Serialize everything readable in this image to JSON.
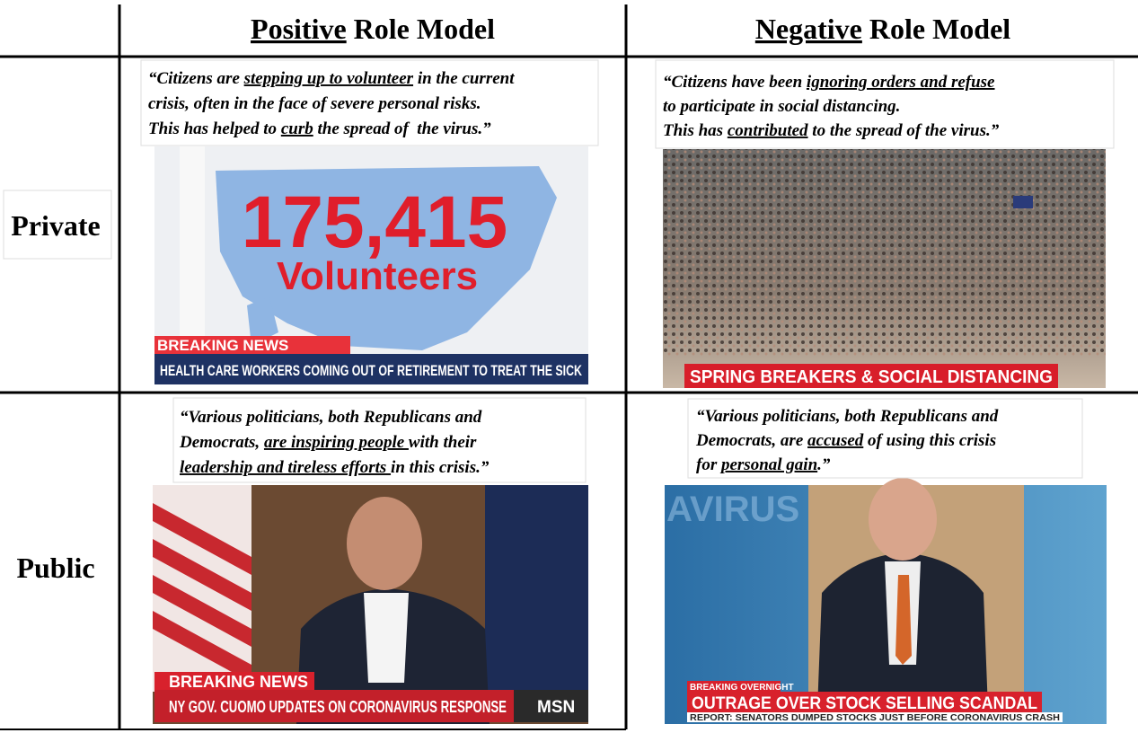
{
  "columns": [
    {
      "segments": [
        {
          "text": "Positive",
          "underline": true
        },
        " Role Model"
      ]
    },
    {
      "segments": [
        {
          "text": "Negative",
          "underline": true
        },
        " Role Model"
      ]
    }
  ],
  "rows": [
    "Private",
    "Public"
  ],
  "cells": [
    {
      "quote": [
        [
          "“Citizens are ",
          {
            "text": "stepping up to volunteer",
            "underline": true
          },
          " in the current"
        ],
        [
          "crisis, often in the face of severe personal risks."
        ],
        [
          "This has helped to ",
          {
            "text": "curb",
            "underline": true
          },
          " the spread of  the virus.”"
        ]
      ],
      "overlay": {
        "number": "175,415",
        "word": "Volunteers",
        "badge": "BREAKING NEWS",
        "ticker": "HEALTH CARE WORKERS COMING OUT OF RETIREMENT TO TREAT THE SICK"
      }
    },
    {
      "quote": [
        [
          "“Citizens have been ",
          {
            "text": "ignoring orders and refuse",
            "underline": true
          }
        ],
        [
          "to participate in social distancing."
        ],
        [
          "This has ",
          {
            "text": "contributed",
            "underline": true
          },
          " to the spread of the virus.”"
        ]
      ],
      "overlay": {
        "ticker": "SPRING BREAKERS & SOCIAL DISTANCING"
      }
    },
    {
      "quote": [
        [
          "“Various politicians, both Republicans and"
        ],
        [
          "Democrats, ",
          {
            "text": "are inspiring people ",
            "underline": true
          },
          "with their"
        ],
        [
          {
            "text": "leadership and tireless efforts ",
            "underline": true
          },
          "in this crisis.”"
        ]
      ],
      "overlay": {
        "badge": "BREAKING NEWS",
        "ticker": "NY GOV. CUOMO UPDATES ON CORONAVIRUS RESPONSE",
        "logo": "MSN"
      }
    },
    {
      "quote": [
        [
          "“Various politicians, both Republicans and"
        ],
        [
          "Democrats, are ",
          {
            "text": "accused",
            "underline": true
          },
          " of using this crisis"
        ],
        [
          "for ",
          {
            "text": "personal gain",
            "underline": true
          },
          ".”"
        ]
      ],
      "overlay": {
        "backdrop": "AVIRUS",
        "badge": "BREAKING OVERNIGHT",
        "ticker": "OUTRAGE OVER STOCK SELLING SCANDAL",
        "subticker": "REPORT: SENATORS DUMPED STOCKS JUST BEFORE CORONAVIRUS CRASH"
      }
    }
  ]
}
